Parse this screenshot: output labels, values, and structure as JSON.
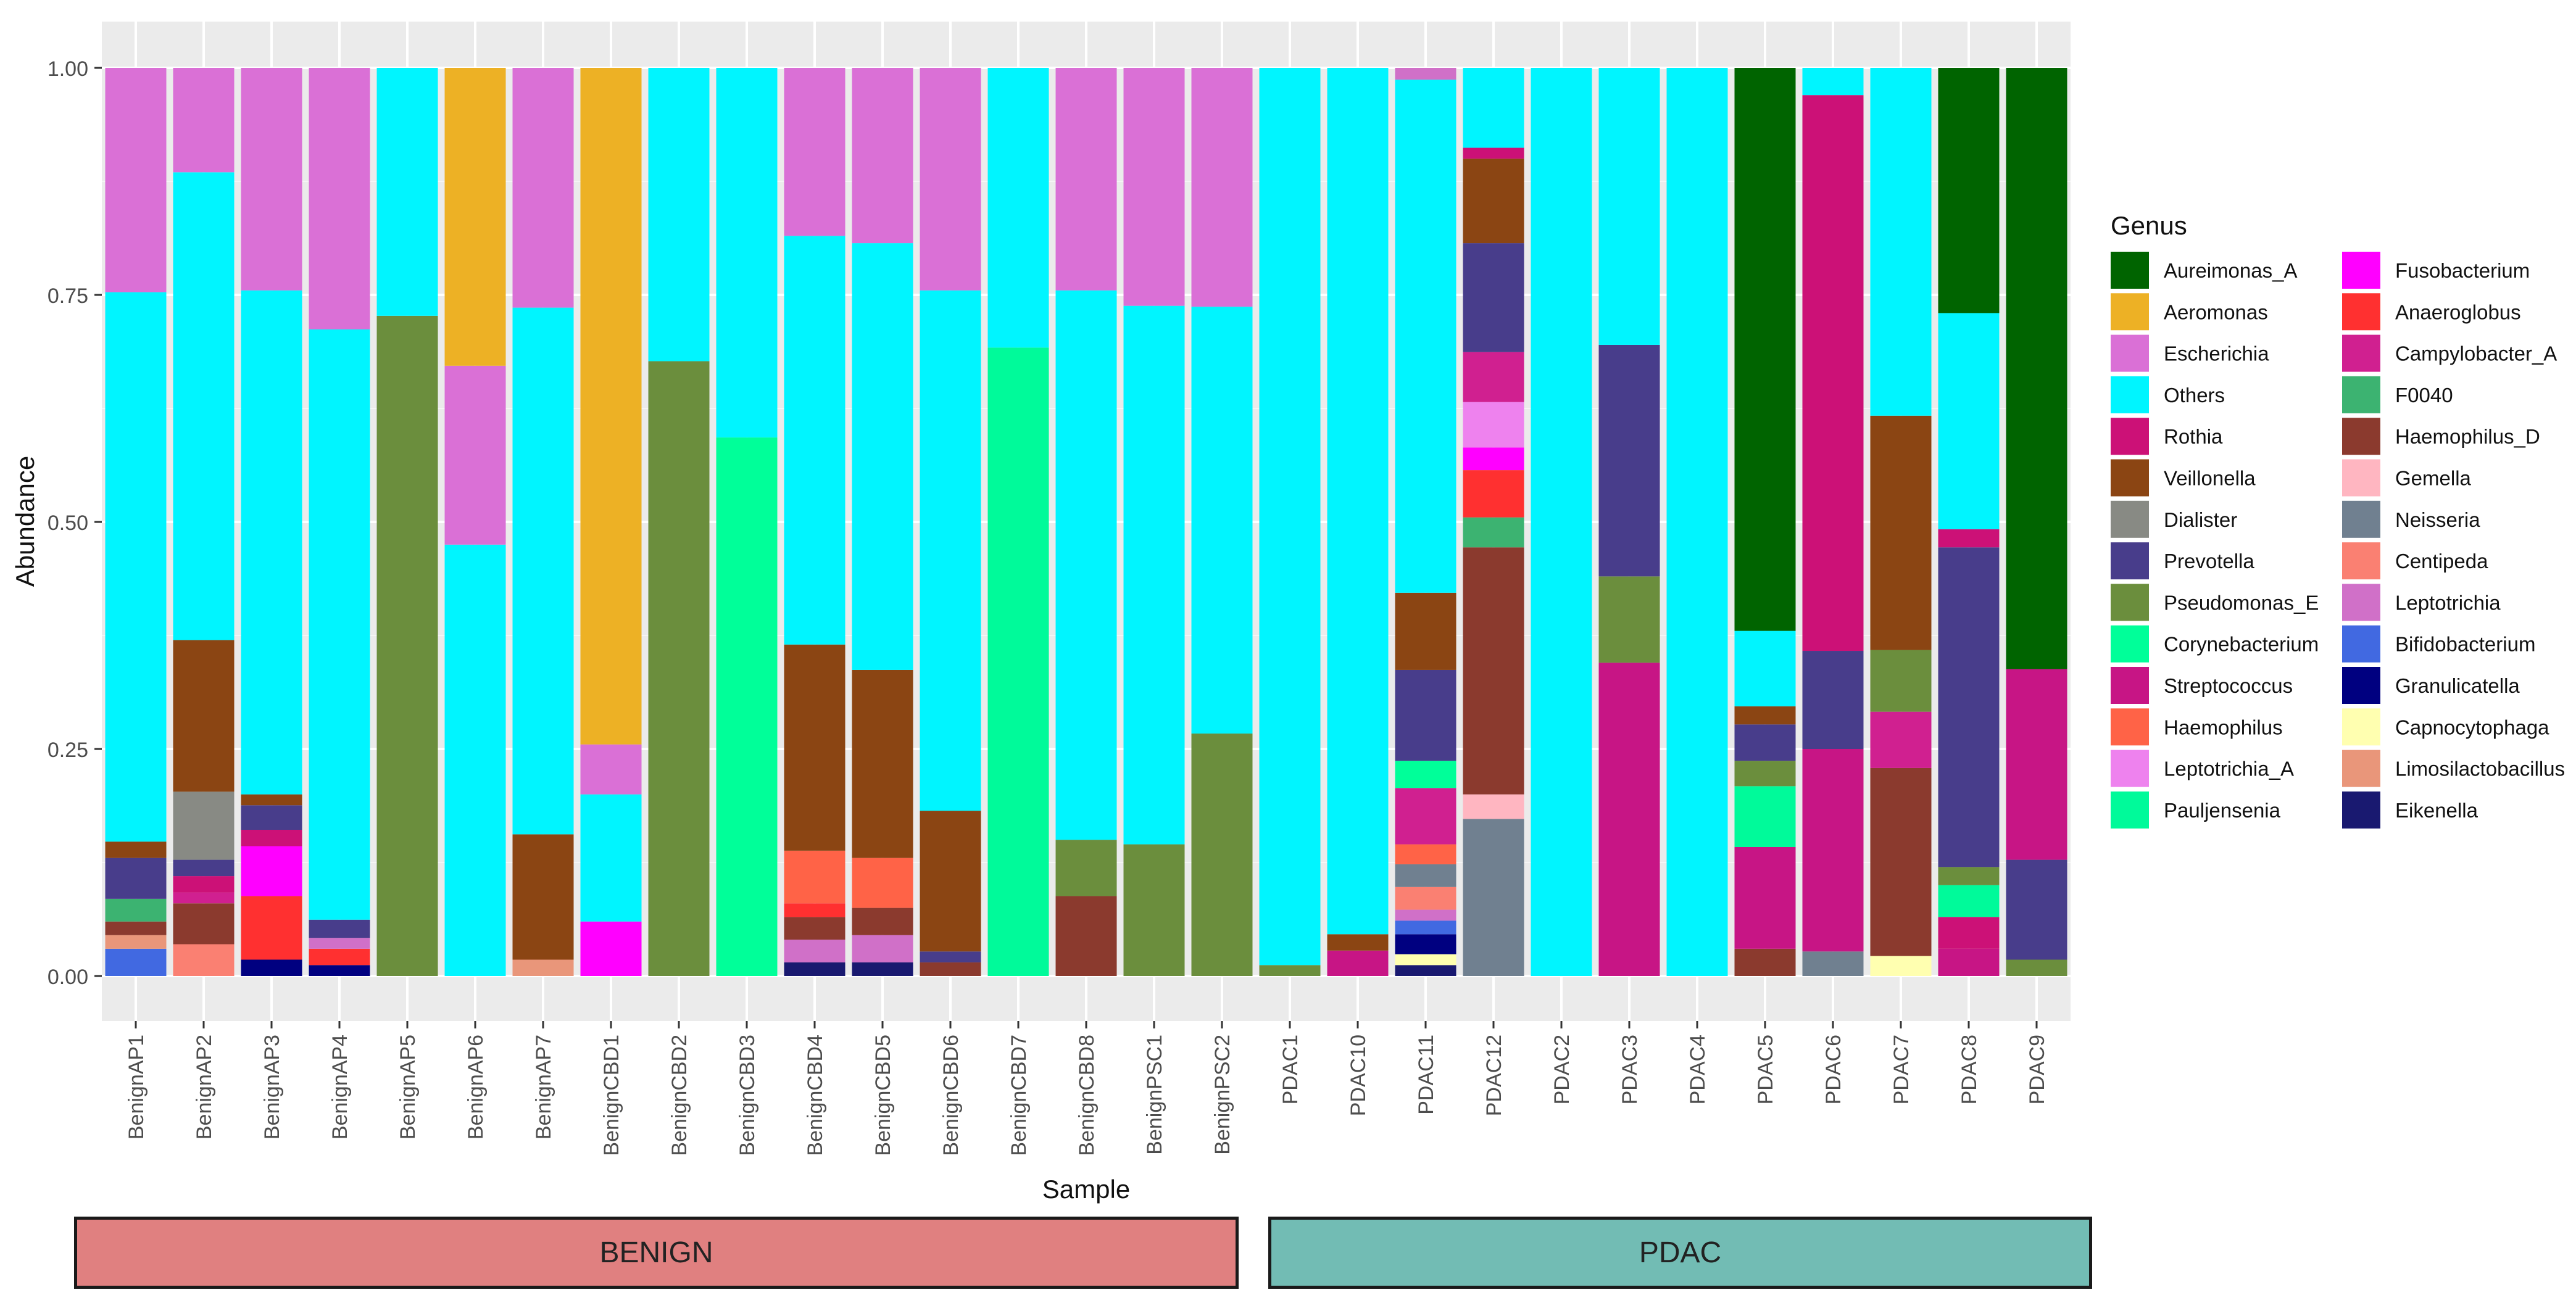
{
  "chart_data": {
    "type": "bar",
    "stacked": true,
    "xlabel": "Sample",
    "ylabel": "Abundance",
    "ylim": [
      0,
      1
    ],
    "yticks": [
      "0.00",
      "0.25",
      "0.50",
      "0.75",
      "1.00"
    ],
    "legend_title": "Genus",
    "legend_position": "right",
    "categories": [
      "BenignAP1",
      "BenignAP2",
      "BenignAP3",
      "BenignAP4",
      "BenignAP5",
      "BenignAP6",
      "BenignAP7",
      "BenignCBD1",
      "BenignCBD2",
      "BenignCBD3",
      "BenignCBD4",
      "BenignCBD5",
      "BenignCBD6",
      "BenignCBD7",
      "BenignCBD8",
      "BenignPSC1",
      "BenignPSC2",
      "PDAC1",
      "PDAC10",
      "PDAC11",
      "PDAC12",
      "PDAC2",
      "PDAC3",
      "PDAC4",
      "PDAC5",
      "PDAC6",
      "PDAC7",
      "PDAC8",
      "PDAC9"
    ],
    "genera": [
      "Aureimonas_A",
      "Aeromonas",
      "Escherichia",
      "Others",
      "Rothia",
      "Veillonella",
      "Dialister",
      "Prevotella",
      "Pseudomonas_E",
      "Corynebacterium",
      "Streptococcus",
      "Haemophilus",
      "Leptotrichia_A",
      "Pauljensenia",
      "Fusobacterium",
      "Anaeroglobus",
      "Campylobacter_A",
      "F0040",
      "Haemophilus_D",
      "Gemella",
      "Neisseria",
      "Centipeda",
      "Leptotrichia",
      "Bifidobacterium",
      "Granulicatella",
      "Capnocytophaga",
      "Limosilactobacillus",
      "Eikenella"
    ],
    "colors": {
      "Aureimonas_A": "#006400",
      "Aeromonas": "#EDB125",
      "Escherichia": "#DA70D6",
      "Others": "#00F5FF",
      "Rothia": "#CC1177",
      "Veillonella": "#8B4513",
      "Dialister": "#888A84",
      "Prevotella": "#483D8B",
      "Pseudomonas_E": "#6B8E3D",
      "Corynebacterium": "#00FF99",
      "Streptococcus": "#C71585",
      "Haemophilus": "#FF6347",
      "Leptotrichia_A": "#EE82EE",
      "Pauljensenia": "#00FA9A",
      "Fusobacterium": "#FF00FF",
      "Anaeroglobus": "#FF3030",
      "Campylobacter_A": "#D02090",
      "F0040": "#3CB371",
      "Haemophilus_D": "#8B3A2E",
      "Gemella": "#FFB6C1",
      "Neisseria": "#708090",
      "Centipeda": "#FA8072",
      "Leptotrichia": "#D070C8",
      "Bifidobacterium": "#4169E1",
      "Granulicatella": "#000080",
      "Capnocytophaga": "#FFFFB0",
      "Limosilactobacillus": "#E9967A",
      "Eikenella": "#191970"
    },
    "stacks": {
      "BenignAP1": [
        [
          "Bifidobacterium",
          0.03
        ],
        [
          "Limosilactobacillus",
          0.015
        ],
        [
          "Haemophilus_D",
          0.015
        ],
        [
          "F0040",
          0.025
        ],
        [
          "Prevotella",
          0.045
        ],
        [
          "Veillonella",
          0.018
        ],
        [
          "Others",
          0.605
        ],
        [
          "Escherichia",
          0.247
        ]
      ],
      "BenignAP2": [
        [
          "Centipeda",
          0.035
        ],
        [
          "Haemophilus_D",
          0.045
        ],
        [
          "Campylobacter_A",
          0.012
        ],
        [
          "Rothia",
          0.018
        ],
        [
          "Prevotella",
          0.018
        ],
        [
          "Dialister",
          0.075
        ],
        [
          "Veillonella",
          0.167
        ],
        [
          "Others",
          0.515
        ],
        [
          "Escherichia",
          0.115
        ]
      ],
      "BenignAP3": [
        [
          "Granulicatella",
          0.018
        ],
        [
          "Anaeroglobus",
          0.07
        ],
        [
          "Fusobacterium",
          0.055
        ],
        [
          "Rothia",
          0.018
        ],
        [
          "Prevotella",
          0.027
        ],
        [
          "Veillonella",
          0.012
        ],
        [
          "Others",
          0.555
        ],
        [
          "Escherichia",
          0.245
        ]
      ],
      "BenignAP4": [
        [
          "Granulicatella",
          0.012
        ],
        [
          "Anaeroglobus",
          0.018
        ],
        [
          "Leptotrichia",
          0.012
        ],
        [
          "Prevotella",
          0.02
        ],
        [
          "Others",
          0.65
        ],
        [
          "Escherichia",
          0.288
        ]
      ],
      "BenignAP5": [
        [
          "Pseudomonas_E",
          0.727
        ],
        [
          "Others",
          0.273
        ]
      ],
      "BenignAP6": [
        [
          "Others",
          0.475
        ],
        [
          "Escherichia",
          0.197
        ],
        [
          "Aeromonas",
          0.328
        ]
      ],
      "BenignAP7": [
        [
          "Limosilactobacillus",
          0.018
        ],
        [
          "Veillonella",
          0.138
        ],
        [
          "Others",
          0.58
        ],
        [
          "Escherichia",
          0.264
        ]
      ],
      "BenignCBD1": [
        [
          "Fusobacterium",
          0.06
        ],
        [
          "Others",
          0.14
        ],
        [
          "Escherichia",
          0.055
        ],
        [
          "Aeromonas",
          0.745
        ]
      ],
      "BenignCBD2": [
        [
          "Pseudomonas_E",
          0.677
        ],
        [
          "Others",
          0.323
        ]
      ],
      "BenignCBD3": [
        [
          "Corynebacterium",
          0.593
        ],
        [
          "Others",
          0.407
        ]
      ],
      "BenignCBD4": [
        [
          "Eikenella",
          0.015
        ],
        [
          "Leptotrichia",
          0.025
        ],
        [
          "Haemophilus_D",
          0.025
        ],
        [
          "Anaeroglobus",
          0.015
        ],
        [
          "Haemophilus",
          0.058
        ],
        [
          "Veillonella",
          0.227
        ],
        [
          "Others",
          0.45
        ],
        [
          "Escherichia",
          0.185
        ]
      ],
      "BenignCBD5": [
        [
          "Eikenella",
          0.015
        ],
        [
          "Leptotrichia",
          0.03
        ],
        [
          "Haemophilus_D",
          0.03
        ],
        [
          "Haemophilus",
          0.055
        ],
        [
          "Veillonella",
          0.207
        ],
        [
          "Others",
          0.47
        ],
        [
          "Escherichia",
          0.193
        ]
      ],
      "BenignCBD6": [
        [
          "Haemophilus_D",
          0.015
        ],
        [
          "Prevotella",
          0.012
        ],
        [
          "Veillonella",
          0.155
        ],
        [
          "Others",
          0.573
        ],
        [
          "Escherichia",
          0.245
        ]
      ],
      "BenignCBD7": [
        [
          "Pauljensenia",
          0.692
        ],
        [
          "Others",
          0.308
        ]
      ],
      "BenignCBD8": [
        [
          "Haemophilus_D",
          0.088
        ],
        [
          "Pseudomonas_E",
          0.062
        ],
        [
          "Others",
          0.605
        ],
        [
          "Escherichia",
          0.245
        ]
      ],
      "BenignPSC1": [
        [
          "Pseudomonas_E",
          0.145
        ],
        [
          "Others",
          0.593
        ],
        [
          "Escherichia",
          0.262
        ]
      ],
      "BenignPSC2": [
        [
          "Pseudomonas_E",
          0.267
        ],
        [
          "Others",
          0.47
        ],
        [
          "Escherichia",
          0.263
        ]
      ],
      "PDAC1": [
        [
          "Pseudomonas_E",
          0.012
        ],
        [
          "Others",
          0.988
        ]
      ],
      "PDAC10": [
        [
          "Streptococcus",
          0.028
        ],
        [
          "Veillonella",
          0.018
        ],
        [
          "Others",
          0.954
        ]
      ],
      "PDAC11": [
        [
          "Eikenella",
          0.012
        ],
        [
          "Capnocytophaga",
          0.012
        ],
        [
          "Granulicatella",
          0.022
        ],
        [
          "Bifidobacterium",
          0.015
        ],
        [
          "Leptotrichia",
          0.012
        ],
        [
          "Centipeda",
          0.025
        ],
        [
          "Neisseria",
          0.025
        ],
        [
          "Haemophilus",
          0.022
        ],
        [
          "Campylobacter_A",
          0.062
        ],
        [
          "Corynebacterium",
          0.03
        ],
        [
          "Prevotella",
          0.1
        ],
        [
          "Veillonella",
          0.085
        ],
        [
          "Others",
          0.565
        ],
        [
          "Leptotrichia",
          0.013
        ]
      ],
      "PDAC12": [
        [
          "Neisseria",
          0.173
        ],
        [
          "Gemella",
          0.027
        ],
        [
          "Haemophilus_D",
          0.272
        ],
        [
          "F0040",
          0.033
        ],
        [
          "Anaeroglobus",
          0.052
        ],
        [
          "Fusobacterium",
          0.025
        ],
        [
          "Leptotrichia_A",
          0.05
        ],
        [
          "Campylobacter_A",
          0.055
        ],
        [
          "Prevotella",
          0.12
        ],
        [
          "Veillonella",
          0.093
        ],
        [
          "Rothia",
          0.012
        ],
        [
          "Others",
          0.088
        ]
      ],
      "PDAC2": [
        [
          "Others",
          1.0
        ]
      ],
      "PDAC3": [
        [
          "Streptococcus",
          0.345
        ],
        [
          "Pseudomonas_E",
          0.095
        ],
        [
          "Prevotella",
          0.255
        ],
        [
          "Others",
          0.305
        ]
      ],
      "PDAC4": [
        [
          "Others",
          1.0
        ]
      ],
      "PDAC5": [
        [
          "Haemophilus_D",
          0.03
        ],
        [
          "Streptococcus",
          0.112
        ],
        [
          "Pauljensenia",
          0.067
        ],
        [
          "Pseudomonas_E",
          0.028
        ],
        [
          "Prevotella",
          0.04
        ],
        [
          "Veillonella",
          0.02
        ],
        [
          "Others",
          0.083
        ],
        [
          "Aureimonas_A",
          0.62
        ]
      ],
      "PDAC6": [
        [
          "Neisseria",
          0.027
        ],
        [
          "Streptococcus",
          0.223
        ],
        [
          "Prevotella",
          0.108
        ],
        [
          "Rothia",
          0.612
        ],
        [
          "Others",
          0.03
        ]
      ],
      "PDAC7": [
        [
          "Capnocytophaga",
          0.022
        ],
        [
          "Haemophilus_D",
          0.207
        ],
        [
          "Campylobacter_A",
          0.062
        ],
        [
          "Pseudomonas_E",
          0.068
        ],
        [
          "Veillonella",
          0.258
        ],
        [
          "Others",
          0.383
        ]
      ],
      "PDAC8": [
        [
          "Streptococcus",
          0.03
        ],
        [
          "Rothia",
          0.035
        ],
        [
          "Pauljensenia",
          0.035
        ],
        [
          "Pseudomonas_E",
          0.02
        ],
        [
          "Prevotella",
          0.352
        ],
        [
          "Rothia",
          0.02
        ],
        [
          "Others",
          0.238
        ],
        [
          "Aureimonas_A",
          0.27
        ]
      ],
      "PDAC9": [
        [
          "Pseudomonas_E",
          0.018
        ],
        [
          "Prevotella",
          0.11
        ],
        [
          "Streptococcus",
          0.21
        ],
        [
          "Aureimonas_A",
          0.662
        ]
      ]
    },
    "groups": [
      {
        "label": "BENIGN",
        "color": "#E08080",
        "first": "BenignAP1",
        "last": "BenignPSC2"
      },
      {
        "label": "PDAC",
        "color": "#72BCB4",
        "first": "PDAC1",
        "last": "PDAC9"
      }
    ]
  }
}
